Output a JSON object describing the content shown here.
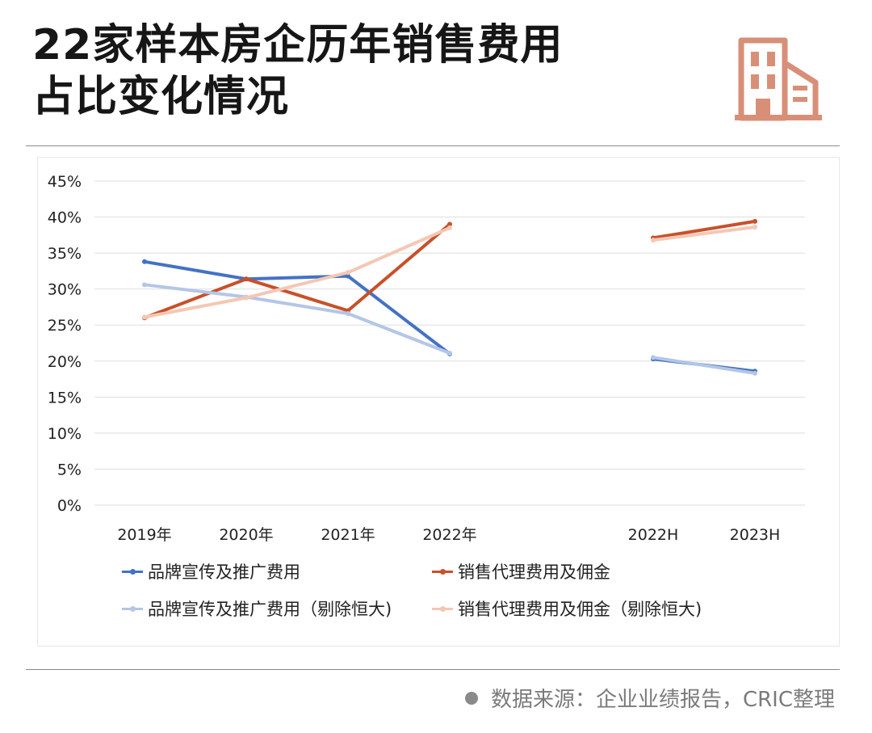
{
  "header": {
    "title_line1": "22家样本房企历年销售费用",
    "title_line2": "占比变化情况",
    "logo_icon": "building-icon",
    "logo_color": "#d88f78"
  },
  "chart_data": {
    "type": "line",
    "title": "",
    "xlabel": "",
    "ylabel": "",
    "categories": [
      "2019年",
      "2020年",
      "2021年",
      "2022年",
      "2022H",
      "2023H"
    ],
    "ylim": [
      0,
      45
    ],
    "yticks": [
      "0%",
      "5%",
      "10%",
      "15%",
      "20%",
      "25%",
      "30%",
      "35%",
      "40%",
      "45%"
    ],
    "grid": true,
    "legend_position": "bottom",
    "series": [
      {
        "name": "品牌宣传及推广费用",
        "color": "#4472c4",
        "values": [
          33.8,
          31.4,
          31.8,
          21.0,
          20.3,
          18.6
        ]
      },
      {
        "name": "销售代理费用及佣金",
        "color": "#c8502a",
        "values": [
          26.0,
          31.4,
          27.0,
          39.0,
          37.1,
          39.4
        ]
      },
      {
        "name": "品牌宣传及推广费用（剔除恒大)",
        "color": "#b4c6e7",
        "values": [
          30.6,
          28.9,
          26.6,
          21.1,
          20.5,
          18.3
        ]
      },
      {
        "name": "销售代理费用及佣金（剔除恒大)",
        "color": "#f4c7b4",
        "values": [
          26.1,
          28.8,
          32.3,
          38.5,
          36.8,
          38.6
        ]
      }
    ]
  },
  "footer": {
    "source": "数据来源：企业业绩报告，CRIC整理"
  }
}
